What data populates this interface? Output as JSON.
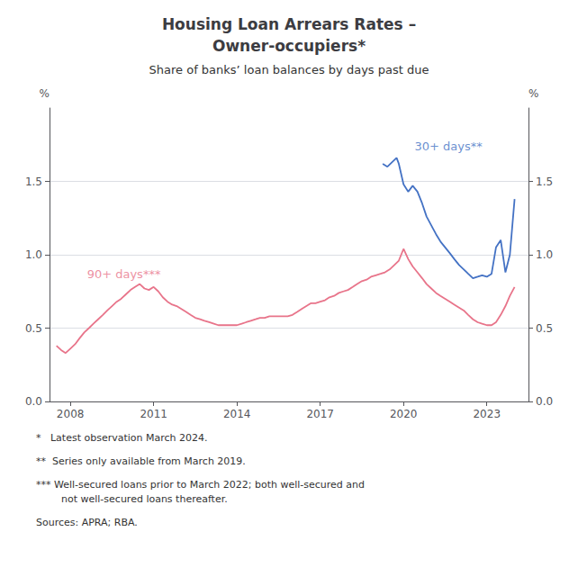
{
  "chart_data": {
    "type": "line",
    "title": "Housing Loan Arrears Rates –\nOwner-occupiers*",
    "subtitle": "Share of banks’ loan balances by days past due",
    "ylabel": "%",
    "y2label": "%",
    "xlim": [
      2007.25,
      2024.5
    ],
    "xticks": [
      2008,
      2011,
      2014,
      2017,
      2020,
      2023
    ],
    "ylim": [
      0.0,
      2.0
    ],
    "yticks": [
      {
        "value": 0.0,
        "label": "0.0"
      },
      0.5,
      {
        "value": 1.0,
        "label": "1.0"
      },
      1.5
    ],
    "y2lim": [
      0.0,
      2.0
    ],
    "y2ticks": [
      {
        "value": 0.0,
        "label": "0.0"
      },
      0.5,
      {
        "value": 1.0,
        "label": "1.0"
      },
      1.5
    ],
    "grid": true,
    "series": [
      {
        "color": "#E8748A",
        "x": [
          2007.5,
          2007.67,
          2007.83,
          2008.0,
          2008.17,
          2008.33,
          2008.5,
          2008.67,
          2008.83,
          2009.0,
          2009.17,
          2009.33,
          2009.5,
          2009.67,
          2009.83,
          2010.0,
          2010.17,
          2010.33,
          2010.5,
          2010.67,
          2010.83,
          2011.0,
          2011.17,
          2011.33,
          2011.5,
          2011.67,
          2011.83,
          2012.0,
          2012.17,
          2012.33,
          2012.5,
          2012.67,
          2012.83,
          2013.0,
          2013.17,
          2013.33,
          2013.5,
          2013.67,
          2013.83,
          2014.0,
          2014.17,
          2014.33,
          2014.5,
          2014.67,
          2014.83,
          2015.0,
          2015.17,
          2015.33,
          2015.5,
          2015.67,
          2015.83,
          2016.0,
          2016.17,
          2016.33,
          2016.5,
          2016.67,
          2016.83,
          2017.0,
          2017.17,
          2017.33,
          2017.5,
          2017.67,
          2017.83,
          2018.0,
          2018.17,
          2018.33,
          2018.5,
          2018.67,
          2018.83,
          2019.0,
          2019.17,
          2019.33,
          2019.5,
          2019.67,
          2019.83,
          2020.0,
          2020.17,
          2020.33,
          2020.5,
          2020.67,
          2020.83,
          2021.0,
          2021.17,
          2021.33,
          2021.5,
          2021.67,
          2021.83,
          2022.0,
          2022.17,
          2022.33,
          2022.5,
          2022.67,
          2022.83,
          2023.0,
          2023.17,
          2023.33,
          2023.5,
          2023.67,
          2023.83,
          2024.0
        ],
        "values": [
          0.38,
          0.35,
          0.33,
          0.36,
          0.39,
          0.43,
          0.47,
          0.5,
          0.53,
          0.56,
          0.59,
          0.62,
          0.65,
          0.68,
          0.7,
          0.73,
          0.76,
          0.78,
          0.8,
          0.77,
          0.76,
          0.78,
          0.75,
          0.71,
          0.68,
          0.66,
          0.65,
          0.63,
          0.61,
          0.59,
          0.57,
          0.56,
          0.55,
          0.54,
          0.53,
          0.52,
          0.52,
          0.52,
          0.52,
          0.52,
          0.53,
          0.54,
          0.55,
          0.56,
          0.57,
          0.57,
          0.58,
          0.58,
          0.58,
          0.58,
          0.58,
          0.59,
          0.61,
          0.63,
          0.65,
          0.67,
          0.67,
          0.68,
          0.69,
          0.71,
          0.72,
          0.74,
          0.75,
          0.76,
          0.78,
          0.8,
          0.82,
          0.83,
          0.85,
          0.86,
          0.87,
          0.88,
          0.9,
          0.93,
          0.96,
          1.04,
          0.97,
          0.92,
          0.88,
          0.84,
          0.8,
          0.77,
          0.74,
          0.72,
          0.7,
          0.68,
          0.66,
          0.64,
          0.62,
          0.59,
          0.56,
          0.54,
          0.53,
          0.52,
          0.52,
          0.54,
          0.59,
          0.65,
          0.72,
          0.78
        ]
      },
      {
        "color": "#4472C4",
        "x": [
          2019.25,
          2019.42,
          2019.58,
          2019.75,
          2019.83,
          2020.0,
          2020.17,
          2020.33,
          2020.5,
          2020.67,
          2020.83,
          2021.0,
          2021.17,
          2021.33,
          2021.5,
          2021.67,
          2021.83,
          2022.0,
          2022.17,
          2022.33,
          2022.5,
          2022.67,
          2022.83,
          2023.0,
          2023.17,
          2023.33,
          2023.5,
          2023.67,
          2023.83,
          2024.0
        ],
        "values": [
          1.62,
          1.6,
          1.63,
          1.66,
          1.62,
          1.48,
          1.43,
          1.47,
          1.43,
          1.35,
          1.26,
          1.2,
          1.14,
          1.09,
          1.05,
          1.01,
          0.97,
          0.93,
          0.9,
          0.87,
          0.84,
          0.85,
          0.86,
          0.85,
          0.87,
          1.05,
          1.1,
          0.88,
          1.0,
          1.38
        ]
      }
    ],
    "annotations": [
      {
        "text": "30+ days**",
        "x": 2020.4,
        "y": 1.74,
        "color": "#4472C4"
      },
      {
        "text": "90+ days***",
        "x": 2008.6,
        "y": 0.87,
        "color": "#E8748A"
      }
    ],
    "footnotes": [
      "*   Latest observation March 2024.",
      "**  Series only available from March 2019.",
      "*** Well-secured loans prior to March 2022; both well-secured and\n        not well-secured loans thereafter.",
      "Sources: APRA; RBA."
    ]
  }
}
